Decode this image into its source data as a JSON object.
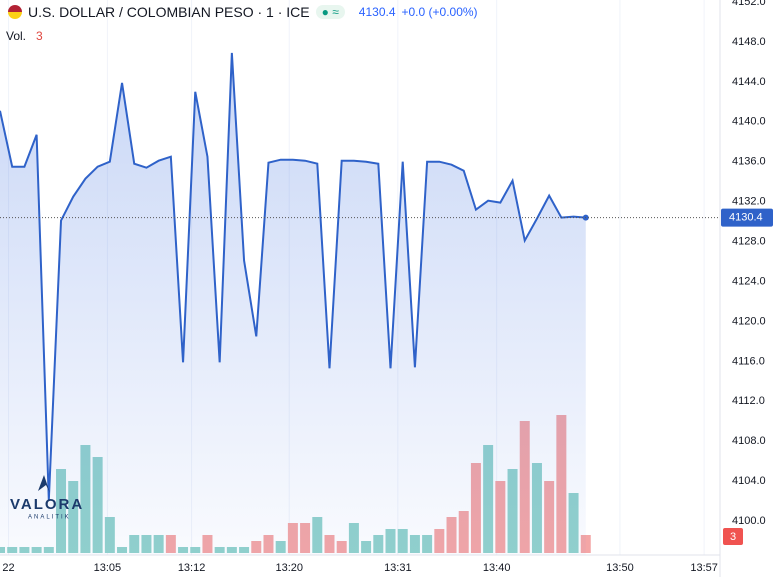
{
  "chart_data": {
    "type": "area",
    "title": "U.S. DOLLAR / COLOMBIAN PESO · 1 · ICE",
    "change": "+0.0 (+0.00%)",
    "categories": [
      null,
      null,
      null,
      null,
      null,
      null,
      null,
      null,
      null,
      null,
      null,
      null,
      null,
      null,
      null,
      null,
      null,
      null,
      null,
      null,
      null,
      null,
      null,
      null,
      null,
      null,
      null,
      null,
      null,
      null,
      null,
      null,
      null,
      null,
      null,
      null,
      null,
      null,
      null,
      null,
      null,
      null,
      null,
      null,
      null,
      null,
      null,
      null,
      null
    ],
    "series": [
      {
        "name": "U.S. DOLLAR / COLOMBIAN PESO",
        "color": "#2f62c9",
        "values": [
          4141.1,
          4135.5,
          4135.5,
          4138.7,
          4102.1,
          4130.1,
          4132.5,
          4134.3,
          4135.5,
          4136.0,
          4143.9,
          4135.8,
          4135.4,
          4136.1,
          4136.5,
          4115.9,
          4143.0,
          4136.5,
          4115.9,
          4146.9,
          4126.1,
          4118.5,
          4135.9,
          4136.2,
          4136.2,
          4136.1,
          4135.8,
          4115.3,
          4136.1,
          4136.1,
          4136.0,
          4135.8,
          4115.3,
          4136.0,
          4115.4,
          4136.0,
          4136.0,
          4135.7,
          4135.1,
          4131.2,
          4132.1,
          4131.9,
          4134.1,
          4128.1,
          4130.3,
          4132.6,
          4130.4,
          4130.5,
          4130.4
        ]
      }
    ],
    "volume": {
      "label": "Vol.",
      "values": [
        1,
        1,
        1,
        1,
        1,
        14,
        12,
        18,
        16,
        6,
        1,
        3,
        3,
        3,
        3,
        1,
        1,
        3,
        1,
        1,
        1,
        2,
        3,
        2,
        5,
        5,
        6,
        3,
        2,
        5,
        2,
        3,
        4,
        4,
        3,
        3,
        4,
        6,
        7,
        15,
        18,
        12,
        14,
        22,
        15,
        12,
        23,
        10,
        3
      ],
      "colors": [
        "#92d2cc",
        "#92d2cc",
        "#92d2cc",
        "#92d2cc",
        "#92d2cc",
        "#92d2cc",
        "#92d2cc",
        "#92d2cc",
        "#92d2cc",
        "#92d2cc",
        "#92d2cc",
        "#92d2cc",
        "#92d2cc",
        "#92d2cc",
        "#f4a6a6",
        "#92d2cc",
        "#92d2cc",
        "#f4a6a6",
        "#92d2cc",
        "#92d2cc",
        "#92d2cc",
        "#f4a6a6",
        "#f4a6a6",
        "#92d2cc",
        "#f4a6a6",
        "#f4a6a6",
        "#92d2cc",
        "#f4a6a6",
        "#f4a6a6",
        "#92d2cc",
        "#92d2cc",
        "#92d2cc",
        "#92d2cc",
        "#92d2cc",
        "#92d2cc",
        "#92d2cc",
        "#f4a6a6",
        "#f4a6a6",
        "#f4a6a6",
        "#f4a6a6",
        "#92d2cc",
        "#f4a6a6",
        "#92d2cc",
        "#f4a6a6",
        "#92d2cc",
        "#f4a6a6",
        "#f4a6a6",
        "#92d2cc",
        "#f4a6a6"
      ]
    },
    "xlim": [
      0,
      59
    ],
    "xticks": [
      {
        "value": 0.7,
        "label": "22"
      },
      {
        "value": 8.8,
        "label": "13:05"
      },
      {
        "value": 15.7,
        "label": "13:12"
      },
      {
        "value": 23.7,
        "label": "13:20"
      },
      {
        "value": 32.6,
        "label": "13:31"
      },
      {
        "value": 40.7,
        "label": "13:40"
      },
      {
        "value": 50.8,
        "label": "13:50"
      },
      {
        "value": 57.7,
        "label": "13:57"
      }
    ],
    "ylim": [
      4096.6,
      4152.2
    ],
    "yticks": [
      {
        "value": 4100,
        "label": "4100.0"
      },
      {
        "value": 4104,
        "label": "4104.0"
      },
      {
        "value": 4108,
        "label": "4108.0"
      },
      {
        "value": 4112,
        "label": "4112.0"
      },
      {
        "value": 4116,
        "label": "4116.0"
      },
      {
        "value": 4120,
        "label": "4120.0"
      },
      {
        "value": 4124,
        "label": "4124.0"
      },
      {
        "value": 4128,
        "label": "4128.0"
      },
      {
        "value": 4132,
        "label": "4132.0"
      },
      {
        "value": 4136,
        "label": "4136.0"
      },
      {
        "value": 4140,
        "label": "4140.0"
      },
      {
        "value": 4144,
        "label": "4144.0"
      },
      {
        "value": 4148,
        "label": "4148.0"
      },
      {
        "value": 4152,
        "label": "4152.0"
      }
    ],
    "grid": true,
    "logo": {
      "name": "VALORA",
      "sub": "ANALITIK"
    }
  }
}
